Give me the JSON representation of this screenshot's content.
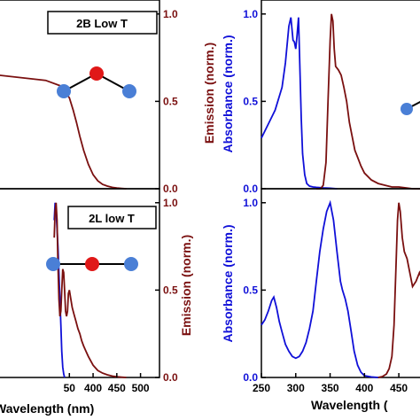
{
  "colors": {
    "absorbance": "#1010d8",
    "emission": "#7a1010",
    "axis": "#000000",
    "atom_outer": "#4a7fd6",
    "atom_center": "#e01818"
  },
  "chart_data": [
    {
      "panel": "top-left",
      "type": "line",
      "legend_label": "2B Low T",
      "xlim": [
        200,
        540
      ],
      "ylim": [
        0,
        1.08
      ],
      "xticks": [],
      "yticks_right": [
        "0.0",
        "0.5",
        "1.0"
      ],
      "xlabel": "",
      "ylabel_right": "Emission (norm.)",
      "series": [
        {
          "role": "emission",
          "x": [
            200,
            300,
            330,
            336,
            342,
            350,
            358,
            365,
            372,
            380,
            390,
            400,
            410,
            420,
            430,
            440,
            450,
            460,
            470
          ],
          "y": [
            0.65,
            0.62,
            0.59,
            0.56,
            0.55,
            0.52,
            0.45,
            0.38,
            0.3,
            0.22,
            0.14,
            0.08,
            0.045,
            0.025,
            0.015,
            0.008,
            0.004,
            0.002,
            0.0
          ]
        }
      ],
      "molecule": "bent"
    },
    {
      "panel": "bottom-left",
      "type": "line",
      "legend_label": "2L low T",
      "xlim": [
        200,
        540
      ],
      "ylim": [
        0,
        1.08
      ],
      "xticks": [
        "50",
        "400",
        "450",
        "500"
      ],
      "yticks_right": [
        "0.0",
        "0.5",
        "1.0"
      ],
      "xlabel": "Wavelength (nm)",
      "ylabel_right": "Emission (norm.)",
      "series": [
        {
          "role": "absorbance",
          "x": [
            318,
            320,
            322,
            324,
            326,
            328,
            330,
            332,
            334,
            336,
            338,
            340
          ],
          "y": [
            0.9,
            1.0,
            0.95,
            0.85,
            0.75,
            0.6,
            0.45,
            0.3,
            0.15,
            0.06,
            0.02,
            0.0
          ]
        },
        {
          "role": "emission",
          "x": [
            318,
            320,
            322,
            324,
            326,
            328,
            330,
            332,
            334,
            336,
            338,
            340,
            342,
            344,
            346,
            348,
            350,
            353,
            356,
            360,
            364,
            368,
            372,
            376,
            380,
            385,
            390,
            400,
            410,
            420,
            430,
            440,
            450,
            460,
            470
          ],
          "y": [
            0.8,
            0.95,
            1.0,
            0.9,
            0.65,
            0.45,
            0.35,
            0.38,
            0.5,
            0.62,
            0.6,
            0.5,
            0.38,
            0.35,
            0.38,
            0.48,
            0.5,
            0.45,
            0.4,
            0.36,
            0.32,
            0.28,
            0.25,
            0.21,
            0.18,
            0.15,
            0.12,
            0.07,
            0.04,
            0.025,
            0.015,
            0.008,
            0.004,
            0.002,
            0.0
          ]
        }
      ],
      "molecule": "linear"
    },
    {
      "panel": "top-right",
      "type": "line",
      "xlim": [
        250,
        495
      ],
      "ylim": [
        0,
        1.08
      ],
      "xticks": [],
      "yticks_left": [
        "0.0",
        "0.5",
        "1.0"
      ],
      "xlabel": "",
      "ylabel_left": "Absorbance (norm.)",
      "series": [
        {
          "role": "absorbance",
          "x": [
            250,
            260,
            270,
            280,
            285,
            290,
            293,
            296,
            298,
            300,
            302,
            304,
            306,
            308,
            310,
            313,
            316,
            320,
            325,
            330,
            340,
            350,
            360
          ],
          "y": [
            0.29,
            0.37,
            0.45,
            0.58,
            0.72,
            0.93,
            0.98,
            0.85,
            0.84,
            0.8,
            0.88,
            0.98,
            0.7,
            0.4,
            0.2,
            0.08,
            0.03,
            0.015,
            0.01,
            0.008,
            0.005,
            0.003,
            0.0
          ]
        },
        {
          "role": "emission",
          "x": [
            330,
            336,
            340,
            344,
            347,
            350,
            352,
            354,
            356,
            358,
            362,
            366,
            370,
            374,
            378,
            382,
            386,
            390,
            395,
            400,
            410,
            420,
            430,
            440,
            450,
            460,
            470,
            480,
            490,
            495
          ],
          "y": [
            0.0,
            0.0,
            0.02,
            0.15,
            0.5,
            0.85,
            1.0,
            0.96,
            0.8,
            0.7,
            0.68,
            0.65,
            0.58,
            0.5,
            0.38,
            0.3,
            0.22,
            0.18,
            0.13,
            0.09,
            0.05,
            0.03,
            0.02,
            0.01,
            0.01,
            0.005,
            0.0,
            0.0,
            0.0,
            0.0
          ]
        }
      ],
      "molecule": "partial"
    },
    {
      "panel": "bottom-right",
      "type": "line",
      "xlim": [
        250,
        495
      ],
      "ylim": [
        0,
        1.08
      ],
      "xticks": [
        "250",
        "300",
        "350",
        "400",
        "450"
      ],
      "yticks_left": [
        "0.0",
        "0.5",
        "1.0"
      ],
      "xlabel": "Wavelength (",
      "ylabel_left": "Absorbance (norm.)",
      "series": [
        {
          "role": "absorbance",
          "x": [
            250,
            255,
            260,
            265,
            268,
            272,
            276,
            280,
            285,
            290,
            295,
            300,
            305,
            310,
            315,
            320,
            325,
            330,
            335,
            340,
            345,
            350,
            355,
            360,
            365,
            368,
            372,
            376,
            380,
            385,
            390,
            395,
            400,
            410,
            420
          ],
          "y": [
            0.3,
            0.33,
            0.38,
            0.44,
            0.46,
            0.4,
            0.32,
            0.26,
            0.19,
            0.15,
            0.12,
            0.11,
            0.12,
            0.15,
            0.2,
            0.28,
            0.38,
            0.55,
            0.72,
            0.85,
            0.95,
            1.0,
            0.9,
            0.72,
            0.55,
            0.5,
            0.45,
            0.38,
            0.28,
            0.15,
            0.07,
            0.03,
            0.01,
            0.003,
            0.0
          ]
        },
        {
          "role": "emission",
          "x": [
            420,
            426,
            432,
            436,
            440,
            443,
            446,
            448,
            450,
            452,
            455,
            458,
            462,
            466,
            470,
            475,
            480,
            485,
            490,
            495
          ],
          "y": [
            0.0,
            0.005,
            0.02,
            0.05,
            0.12,
            0.3,
            0.65,
            0.9,
            1.0,
            0.95,
            0.8,
            0.72,
            0.68,
            0.6,
            0.52,
            0.55,
            0.6,
            0.55,
            0.5,
            0.45
          ]
        }
      ],
      "molecule": "partial"
    }
  ]
}
